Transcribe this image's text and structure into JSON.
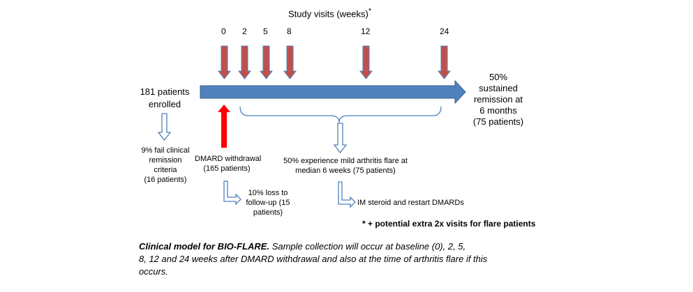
{
  "title": "Study visits (weeks)",
  "title_mark": "*",
  "weeks": [
    "0",
    "2",
    "5",
    "8",
    "12",
    "24"
  ],
  "enrolled": [
    "181 patients",
    "enrolled"
  ],
  "remission": [
    "50%",
    "sustained",
    "remission at",
    "6 months",
    "(75 patients)"
  ],
  "fail": [
    "9% fail clinical",
    "remission",
    "criteria",
    "(16 patients)"
  ],
  "withdrawal": [
    "DMARD withdrawal",
    "(165 patients)"
  ],
  "flare": [
    "50% experience mild arthritis flare at",
    "median 6 weeks (75 patients)"
  ],
  "loss": [
    "10% loss to",
    "follow-up (15",
    "patients)"
  ],
  "steroid": "IM steroid and restart DMARDs",
  "footnote": "* + potential extra 2x visits for flare patients",
  "caption": {
    "bold": "Clinical model for BIO-FLARE.",
    "lines": [
      " Sample collection will occur at baseline (0), 2, 5,",
      "8, 12 and 24 weeks after DMARD withdrawal and also at the time of arthritis flare if this",
      "occurs."
    ]
  },
  "colors": {
    "timeline": "#4f81bd",
    "timeline_edge": "#385d8a",
    "visit_arrow": "#c0504d",
    "withdrawal_arrow": "#ff0000",
    "outline_arrow": "#4f81bd"
  }
}
